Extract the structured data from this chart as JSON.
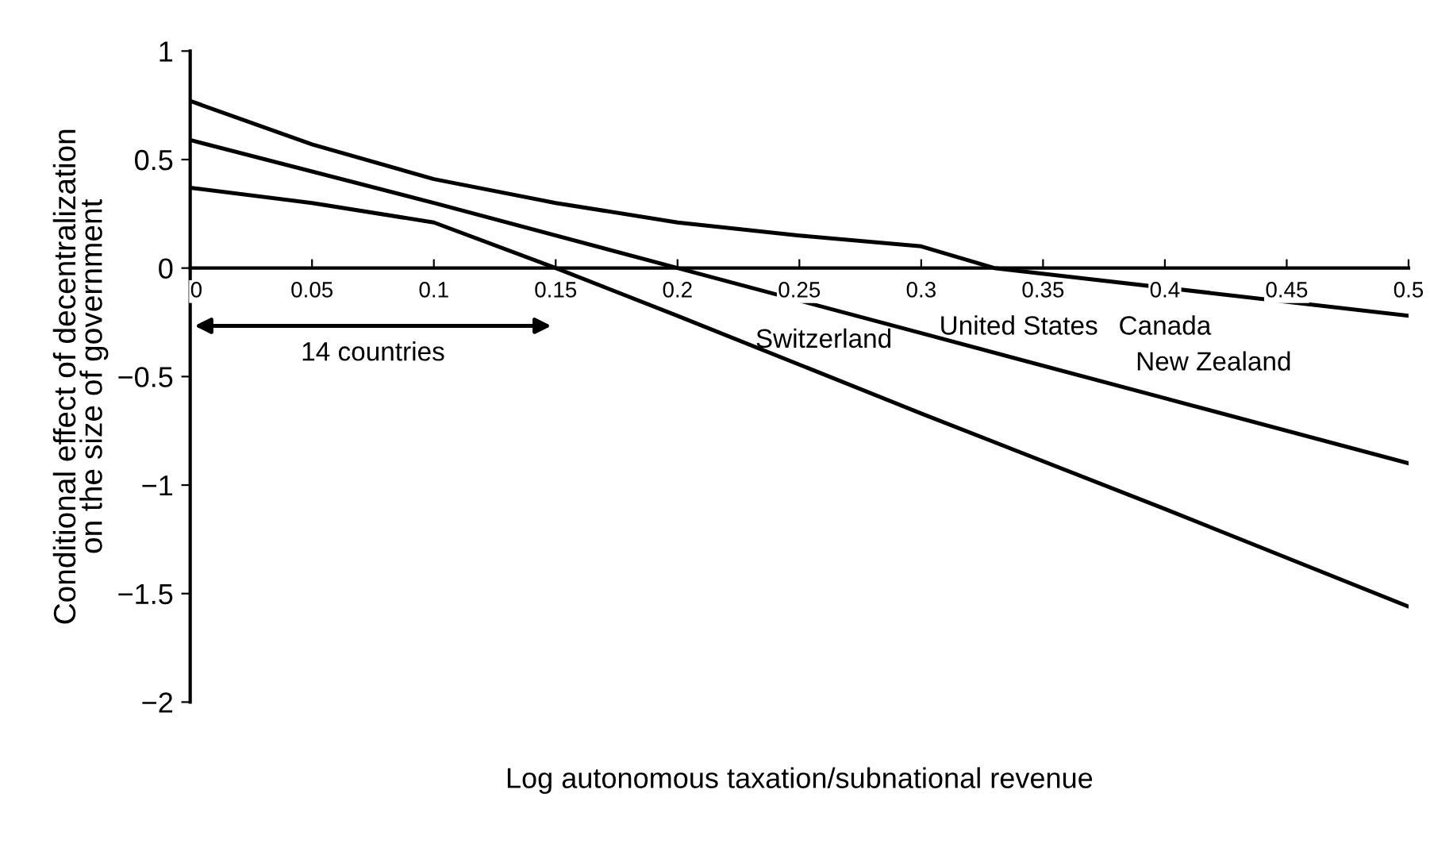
{
  "chart_data": {
    "type": "line",
    "xlabel": "Log autonomous taxation/subnational revenue",
    "ylabel": "Conditional effect of decentralization\non the size of government",
    "series": [
      {
        "color": "#000000",
        "x": [
          0,
          0.05,
          0.1,
          0.15,
          0.2,
          0.25,
          0.3,
          0.33,
          0.5
        ],
        "values": [
          0.77,
          0.57,
          0.41,
          0.3,
          0.21,
          0.15,
          0.1,
          0.0,
          -0.22
        ]
      },
      {
        "color": "#000000",
        "x": [
          0,
          0.1,
          0.2,
          0.3,
          0.4,
          0.5
        ],
        "values": [
          0.59,
          0.3,
          0.0,
          -0.3,
          -0.6,
          -0.9
        ]
      },
      {
        "color": "#000000",
        "x": [
          0,
          0.05,
          0.1,
          0.15,
          0.2,
          0.3,
          0.4,
          0.5
        ],
        "values": [
          0.37,
          0.3,
          0.21,
          0.0,
          -0.22,
          -0.67,
          -1.11,
          -1.56
        ]
      }
    ],
    "xlim": [
      0,
      0.5
    ],
    "ylim": [
      -2,
      1
    ],
    "xticks": [
      0,
      0.05,
      0.1,
      0.15,
      0.2,
      0.25,
      0.3,
      0.35,
      0.4,
      0.45,
      0.5
    ],
    "yticks": [
      -2,
      -1.5,
      -1,
      -0.5,
      0,
      0.5,
      1
    ],
    "annotations": [
      "14 countries",
      "Switzerland",
      "United States",
      "Canada",
      "New Zealand"
    ],
    "grid": false,
    "legend": false,
    "marker": "none",
    "line_style": "solid"
  }
}
